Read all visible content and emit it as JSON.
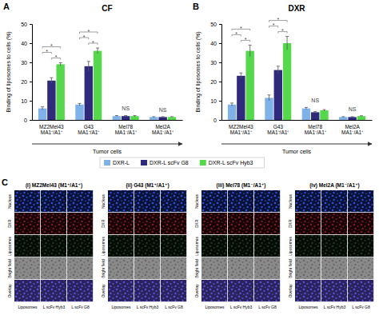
{
  "chart_data": [
    {
      "type": "bar",
      "title": "CF",
      "categories": [
        "MZ2Mel43\nMA1⁺/A1⁺",
        "G43\nMA1⁺/A1⁺",
        "Mel78\nMA1⁻/A1⁺",
        "Mel2A\nMA1⁻/A1⁺"
      ],
      "x_label": "Tumor cells",
      "y_label": "Binding of liposomes to cells (%)",
      "series": [
        {
          "name": "DXR-L",
          "color": "#7fb2e8",
          "values": [
            6,
            8,
            2,
            1.5
          ],
          "errors": [
            0.8,
            0.6,
            0.3,
            0.2
          ]
        },
        {
          "name": "DXR-L scFv G8",
          "color": "#2f2a7c",
          "values": [
            20.5,
            28,
            2,
            1.5
          ],
          "errors": [
            1.5,
            2.5,
            0.3,
            0.2
          ]
        },
        {
          "name": "DXR-L scFv Hyb3",
          "color": "#55d84c",
          "values": [
            29,
            36,
            2,
            1.5
          ],
          "errors": [
            0.8,
            1.5,
            0.3,
            0.2
          ]
        }
      ],
      "annotations": [
        {
          "text": "*",
          "category": 0,
          "series": [
            1,
            2
          ]
        },
        {
          "text": "*",
          "category": 0,
          "series": [
            0,
            1
          ]
        },
        {
          "text": "*",
          "category": 0,
          "series": [
            0,
            2
          ]
        },
        {
          "text": "*",
          "category": 1,
          "series": [
            1,
            2
          ]
        },
        {
          "text": "*",
          "category": 1,
          "series": [
            0,
            1
          ]
        },
        {
          "text": "*",
          "category": 1,
          "series": [
            0,
            2
          ]
        },
        {
          "text": "NS",
          "category": 2
        },
        {
          "text": "NS",
          "category": 3
        }
      ],
      "ylim": [
        0,
        50
      ],
      "yticks": [
        0,
        10,
        20,
        30,
        40,
        50
      ],
      "grid": false
    },
    {
      "type": "bar",
      "title": "DXR",
      "categories": [
        "MZ2Mel43\nMA1⁺/A1⁺",
        "G43\nMA1⁺/A1⁺",
        "Mel78\nMA1⁻/A1⁺",
        "Mel2A\nMA1⁻/A1⁺"
      ],
      "x_label": "Tumor cells",
      "y_label": "Binding of liposomes to cells (%)",
      "series": [
        {
          "color": "#7fb2e8",
          "values": [
            8,
            11.5,
            6,
            1.5
          ],
          "errors": [
            0.8,
            1.5,
            0.5,
            0.2
          ]
        },
        {
          "color": "#2f2a7c",
          "values": [
            23,
            26,
            4,
            1.5
          ],
          "errors": [
            1.5,
            2,
            0.4,
            0.2
          ]
        },
        {
          "color": "#55d84c",
          "values": [
            36,
            40,
            5,
            2
          ],
          "errors": [
            3,
            3.5,
            0.4,
            0.2
          ]
        }
      ],
      "annotations": [
        {
          "text": "*",
          "category": 0,
          "series": [
            1,
            2
          ]
        },
        {
          "text": "*",
          "category": 0,
          "series": [
            0,
            1
          ]
        },
        {
          "text": "*",
          "category": 0,
          "series": [
            0,
            2
          ]
        },
        {
          "text": "*",
          "category": 1,
          "series": [
            1,
            2
          ]
        },
        {
          "text": "*",
          "category": 1,
          "series": [
            0,
            1
          ]
        },
        {
          "text": "*",
          "category": 1,
          "series": [
            0,
            2
          ]
        },
        {
          "text": "NS",
          "category": 2
        },
        {
          "text": "NS",
          "category": 3
        }
      ],
      "ylim": [
        0,
        50
      ],
      "yticks": [
        0,
        10,
        20,
        30,
        40,
        50
      ],
      "grid": false
    }
  ],
  "panel_labels": [
    "A",
    "B"
  ],
  "panel_c": {
    "label": "C",
    "panels": [
      "(i) MZ2Mel43 (M1⁺/A1⁺)",
      "(ii) G43 (M1⁺/A1⁺)",
      "(iii) Mel78 (M1⁻/A1⁺)",
      "(iv) Mel2A (M1⁻/A1⁺)"
    ],
    "rows": [
      "Nucleus",
      "DXR",
      "Liposomes",
      "Bright field",
      "Overlay"
    ],
    "columns": [
      "Liposomes",
      "L scFv Hyb3",
      "L scFv G8"
    ]
  }
}
